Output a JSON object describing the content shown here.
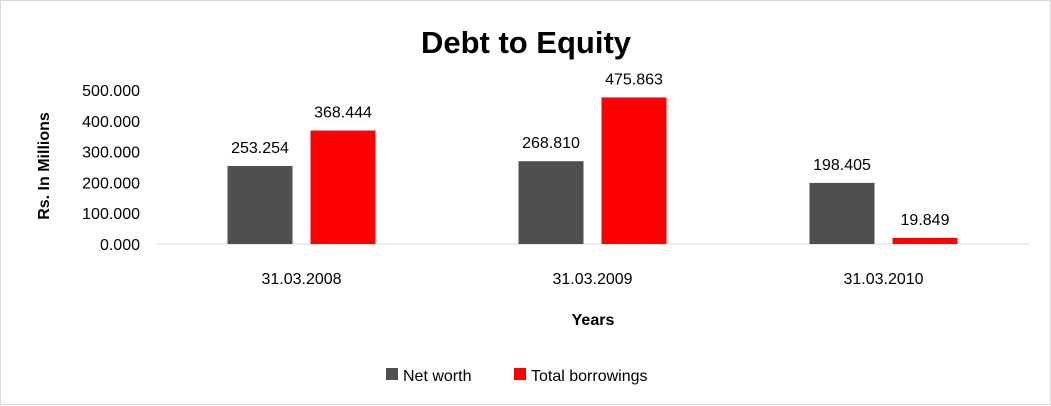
{
  "chart_data": {
    "type": "bar",
    "title": "Debt to Equity",
    "xlabel": "Years",
    "ylabel": "Rs. In Millions",
    "categories": [
      "31.03.2008",
      "31.03.2009",
      "31.03.2010"
    ],
    "series": [
      {
        "name": "Net worth",
        "values": [
          253.254,
          268.81,
          198.405
        ],
        "labels": [
          "253.254",
          "268.810",
          "198.405"
        ],
        "color": "#4f4f4f"
      },
      {
        "name": "Total borrowings",
        "values": [
          368.444,
          475.863,
          19.849
        ],
        "labels": [
          "368.444",
          "475.863",
          "19.849"
        ],
        "color": "#ff0000"
      }
    ],
    "ylim": [
      0,
      500
    ],
    "yticks": [
      0,
      100,
      200,
      300,
      400,
      500
    ],
    "ytick_labels": [
      "0.000",
      "100.000",
      "200.000",
      "300.000",
      "400.000",
      "500.000"
    ],
    "grid": false,
    "legend_position": "bottom"
  }
}
